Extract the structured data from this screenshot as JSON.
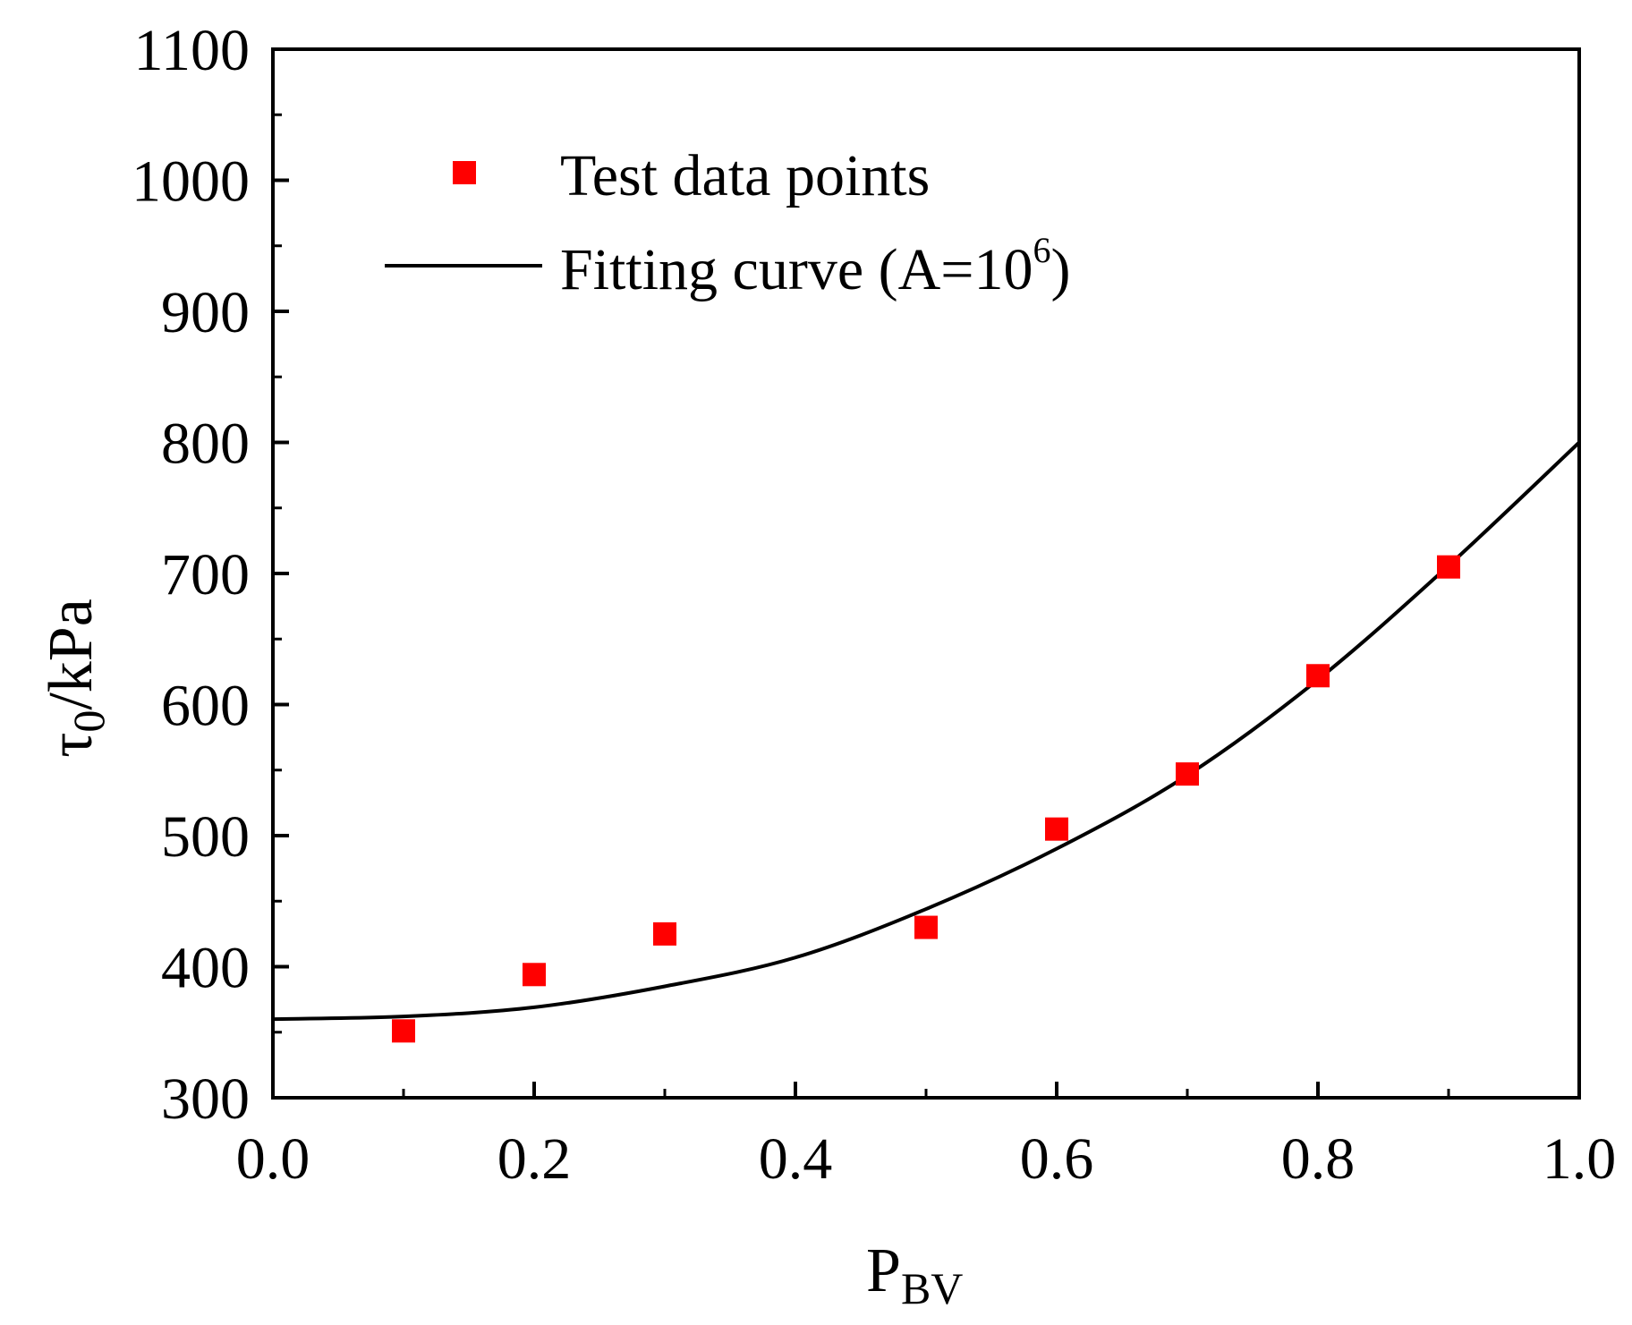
{
  "chart_data": {
    "type": "scatter",
    "title": "",
    "xlabel": {
      "main": "P",
      "subscript": "BV"
    },
    "ylabel": {
      "main": "τ",
      "subscript": "0",
      "suffix": "/kPa"
    },
    "xlim": [
      0.0,
      1.0
    ],
    "ylim": [
      300,
      1100
    ],
    "x_ticks": [
      0.0,
      0.2,
      0.4,
      0.6,
      0.8,
      1.0
    ],
    "x_tick_labels": [
      "0.0",
      "0.2",
      "0.4",
      "0.6",
      "0.8",
      "1.0"
    ],
    "y_ticks": [
      300,
      400,
      500,
      600,
      700,
      800,
      900,
      1000,
      1100
    ],
    "y_tick_labels": [
      "300",
      "400",
      "500",
      "600",
      "700",
      "800",
      "900",
      "1000",
      "1100"
    ],
    "grid": false,
    "legend_position": "top-left",
    "series": [
      {
        "name": "Test data points",
        "kind": "scatter",
        "marker": "square",
        "color": "#ff0000",
        "x": [
          0.1,
          0.2,
          0.3,
          0.5,
          0.6,
          0.7,
          0.8,
          0.9
        ],
        "y": [
          351,
          394,
          425,
          430,
          505,
          547,
          622,
          705
        ]
      },
      {
        "name": "Fitting curve (A=10^6)",
        "legend_main": "Fitting curve (A=10",
        "legend_sup": "6",
        "legend_close": ")",
        "kind": "line",
        "color": "#000000",
        "x": [
          0.0,
          0.1,
          0.2,
          0.3,
          0.4,
          0.5,
          0.6,
          0.7,
          0.8,
          0.9,
          1.0
        ],
        "y": [
          360,
          362,
          369,
          385,
          407,
          444,
          490,
          546,
          619,
          706,
          800
        ]
      }
    ]
  }
}
